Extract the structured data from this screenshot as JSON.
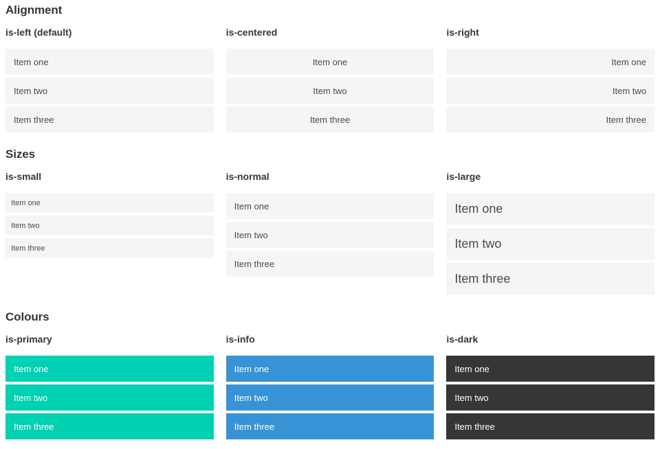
{
  "colors": {
    "primary": "#00d1b2",
    "info": "#3793d5",
    "dark": "#363636",
    "item_bg": "#f5f5f5",
    "item_text": "#4a4a4a",
    "heading_text": "#363636",
    "on_color_text": "#ffffff"
  },
  "sections": [
    {
      "title": "Alignment",
      "columns": [
        {
          "label": "is-left (default)",
          "variant": "left",
          "items": [
            "Item one",
            "Item two",
            "Item three"
          ]
        },
        {
          "label": "is-centered",
          "variant": "centered",
          "items": [
            "Item one",
            "Item two",
            "Item three"
          ]
        },
        {
          "label": "is-right",
          "variant": "right",
          "items": [
            "Item one",
            "Item two",
            "Item three"
          ]
        }
      ]
    },
    {
      "title": "Sizes",
      "columns": [
        {
          "label": "is-small",
          "variant": "small",
          "items": [
            "Item one",
            "Item two",
            "Item three"
          ]
        },
        {
          "label": "is-normal",
          "variant": "normal",
          "items": [
            "Item one",
            "Item two",
            "Item three"
          ]
        },
        {
          "label": "is-large",
          "variant": "large",
          "items": [
            "Item one",
            "Item two",
            "Item three"
          ]
        }
      ]
    },
    {
      "title": "Colours",
      "columns": [
        {
          "label": "is-primary",
          "variant": "primary",
          "items": [
            "Item one",
            "Item two",
            "Item three"
          ]
        },
        {
          "label": "is-info",
          "variant": "info",
          "items": [
            "Item one",
            "Item two",
            "Item three"
          ]
        },
        {
          "label": "is-dark",
          "variant": "dark",
          "items": [
            "Item one",
            "Item two",
            "Item three"
          ]
        }
      ]
    }
  ]
}
